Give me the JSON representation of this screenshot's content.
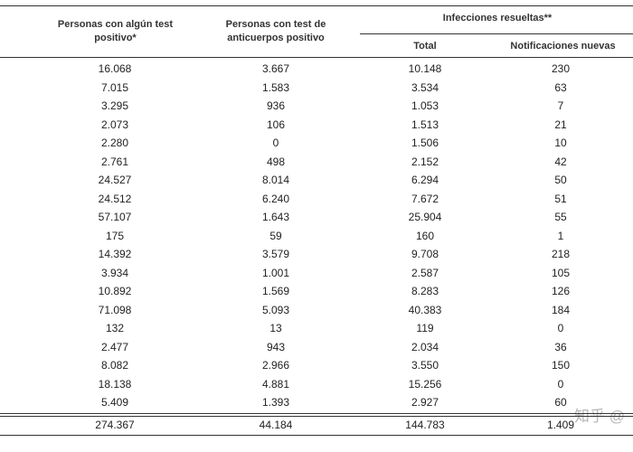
{
  "table": {
    "header": {
      "col1": "Personas con algún test positivo*",
      "col2": "Personas con test de anticuerpos positivo",
      "group": "Infecciones resueltas**",
      "col3": "Total",
      "col4": "Notificaciones nuevas"
    },
    "rows": [
      [
        "16.068",
        "3.667",
        "10.148",
        "230"
      ],
      [
        "7.015",
        "1.583",
        "3.534",
        "63"
      ],
      [
        "3.295",
        "936",
        "1.053",
        "7"
      ],
      [
        "2.073",
        "106",
        "1.513",
        "21"
      ],
      [
        "2.280",
        "0",
        "1.506",
        "10"
      ],
      [
        "2.761",
        "498",
        "2.152",
        "42"
      ],
      [
        "24.527",
        "8.014",
        "6.294",
        "50"
      ],
      [
        "24.512",
        "6.240",
        "7.672",
        "51"
      ],
      [
        "57.107",
        "1.643",
        "25.904",
        "55"
      ],
      [
        "175",
        "59",
        "160",
        "1"
      ],
      [
        "14.392",
        "3.579",
        "9.708",
        "218"
      ],
      [
        "3.934",
        "1.001",
        "2.587",
        "105"
      ],
      [
        "10.892",
        "1.569",
        "8.283",
        "126"
      ],
      [
        "71.098",
        "5.093",
        "40.383",
        "184"
      ],
      [
        "132",
        "13",
        "119",
        "0"
      ],
      [
        "2.477",
        "943",
        "2.034",
        "36"
      ],
      [
        "8.082",
        "2.966",
        "3.550",
        "150"
      ],
      [
        "18.138",
        "4.881",
        "15.256",
        "0"
      ],
      [
        "5.409",
        "1.393",
        "2.927",
        "60"
      ]
    ],
    "total": [
      "274.367",
      "44.184",
      "144.783",
      "1.409"
    ]
  },
  "watermark": "知乎 @"
}
